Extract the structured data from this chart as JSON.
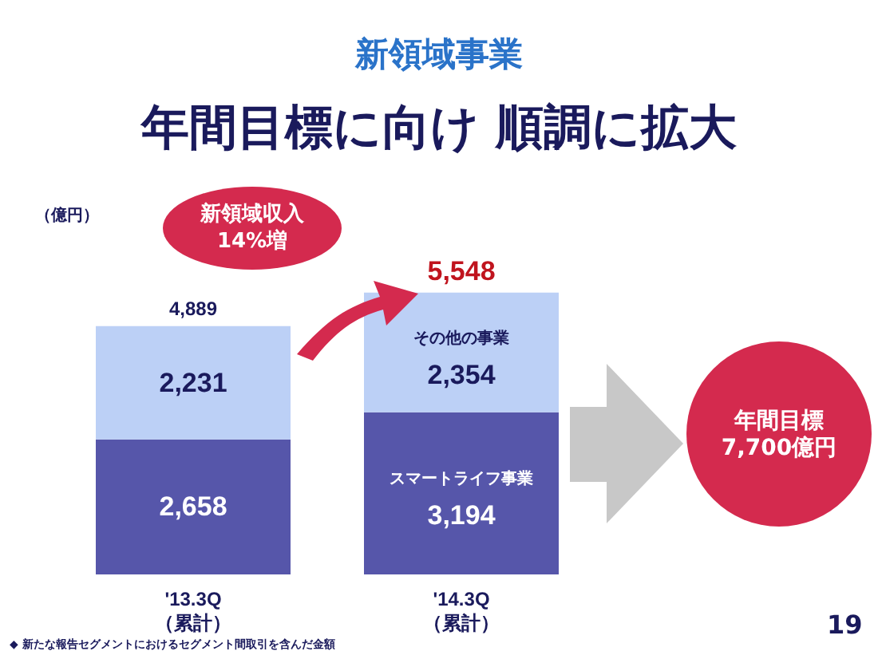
{
  "chart_data": {
    "type": "bar",
    "title": "新領域事業",
    "subtitle": "年間目標に向け 順調に拡大",
    "ylabel": "（億円）",
    "categories": [
      "'13.3Q\n（累計）",
      "'14.3Q\n（累計）"
    ],
    "stacked": true,
    "series": [
      {
        "name": "スマートライフ事業",
        "color": "#5656aa",
        "values": [
          2658,
          3194
        ],
        "value_labels": [
          "2,658",
          "3,194"
        ]
      },
      {
        "name": "その他の事業",
        "color": "#bcd0f6",
        "values": [
          2231,
          2354
        ],
        "value_labels": [
          "2,231",
          "2,354"
        ]
      }
    ],
    "totals": [
      "4,889",
      "5,548"
    ],
    "tick_labels": "x",
    "grid": false,
    "legend": false,
    "annotations": [
      "新領域収入\n14%増",
      "年間目標\n7,700億円",
      "19",
      "◆ 新たな報告セグメントにおけるセグメント間取引を含んだ金額"
    ]
  }
}
